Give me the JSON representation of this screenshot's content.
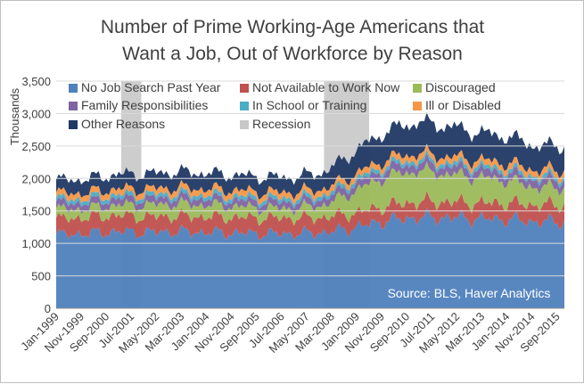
{
  "chart_data": {
    "type": "area",
    "stacked": true,
    "title_lines": [
      "Number of Prime Working-Age Americans that",
      "Want a Job, Out of Workforce by Reason"
    ],
    "ylabel": "Thousands",
    "xlabel": "",
    "ylim": [
      0,
      3500
    ],
    "yticks": [
      0,
      500,
      1000,
      1500,
      2000,
      2500,
      3000,
      3500
    ],
    "ytick_labels": [
      "0",
      "500",
      "1,000",
      "1,500",
      "2,000",
      "2,500",
      "3,000",
      "3,500"
    ],
    "xtick_labels": [
      "Jan-1999",
      "Nov-1999",
      "Sep-2000",
      "Jul-2001",
      "May-2002",
      "Mar-2003",
      "Jan-2004",
      "Nov-2004",
      "Sep-2005",
      "Jul-2006",
      "May-2007",
      "Mar-2008",
      "Jan-2009",
      "Nov-2009",
      "Sep-2010",
      "Jul-2011",
      "May-2012",
      "Mar-2013",
      "Jan-2014",
      "Nov-2014",
      "Sep-2015"
    ],
    "x_start": "Jan-1999",
    "x_end": "Dec-2015",
    "annotation": "Source: BLS, Haver Analytics",
    "recessions": [
      {
        "start": "Mar-2001",
        "end": "Nov-2001"
      },
      {
        "start": "Dec-2007",
        "end": "Jun-2009"
      }
    ],
    "series": [
      {
        "name": "No Job Search Past Year",
        "color": "#4f81bd",
        "anchor_years": [
          1999,
          2000,
          2001,
          2002,
          2003,
          2004,
          2005,
          2006,
          2007,
          2008,
          2009,
          2010,
          2011,
          2012,
          2013,
          2014,
          2015
        ],
        "values": [
          1130,
          1150,
          1180,
          1170,
          1180,
          1170,
          1160,
          1150,
          1150,
          1170,
          1250,
          1350,
          1400,
          1400,
          1380,
          1370,
          1330
        ]
      },
      {
        "name": "Not Available to Work Now",
        "color": "#c0504d",
        "anchor_years": [
          1999,
          2000,
          2001,
          2002,
          2003,
          2004,
          2005,
          2006,
          2007,
          2008,
          2009,
          2010,
          2011,
          2012,
          2013,
          2014,
          2015
        ],
        "values": [
          240,
          250,
          250,
          240,
          240,
          240,
          240,
          240,
          240,
          230,
          220,
          230,
          240,
          240,
          240,
          250,
          260
        ]
      },
      {
        "name": "Discouraged",
        "color": "#9bbb59",
        "anchor_years": [
          1999,
          2000,
          2001,
          2002,
          2003,
          2004,
          2005,
          2006,
          2007,
          2008,
          2009,
          2010,
          2011,
          2012,
          2013,
          2014,
          2015
        ],
        "values": [
          150,
          130,
          160,
          180,
          190,
          180,
          170,
          150,
          150,
          200,
          350,
          450,
          480,
          430,
          400,
          350,
          270
        ]
      },
      {
        "name": "Family Responsibilities",
        "color": "#8064a2",
        "anchor_years": [
          1999,
          2000,
          2001,
          2002,
          2003,
          2004,
          2005,
          2006,
          2007,
          2008,
          2009,
          2010,
          2011,
          2012,
          2013,
          2014,
          2015
        ],
        "values": [
          100,
          100,
          100,
          100,
          100,
          100,
          100,
          100,
          100,
          100,
          110,
          120,
          120,
          120,
          120,
          120,
          120
        ]
      },
      {
        "name": "In School or Training",
        "color": "#4bacc6",
        "anchor_years": [
          1999,
          2000,
          2001,
          2002,
          2003,
          2004,
          2005,
          2006,
          2007,
          2008,
          2009,
          2010,
          2011,
          2012,
          2013,
          2014,
          2015
        ],
        "values": [
          60,
          60,
          60,
          60,
          60,
          60,
          60,
          60,
          60,
          60,
          60,
          60,
          60,
          60,
          60,
          60,
          60
        ]
      },
      {
        "name": "Ill or Disabled",
        "color": "#f79646",
        "anchor_years": [
          1999,
          2000,
          2001,
          2002,
          2003,
          2004,
          2005,
          2006,
          2007,
          2008,
          2009,
          2010,
          2011,
          2012,
          2013,
          2014,
          2015
        ],
        "values": [
          90,
          90,
          90,
          90,
          90,
          90,
          90,
          90,
          90,
          90,
          90,
          90,
          90,
          90,
          90,
          90,
          90
        ]
      },
      {
        "name": "Other Reasons",
        "color": "#1f3864",
        "anchor_years": [
          1999,
          2000,
          2001,
          2002,
          2003,
          2004,
          2005,
          2006,
          2007,
          2008,
          2009,
          2010,
          2011,
          2012,
          2013,
          2014,
          2015
        ],
        "values": [
          200,
          210,
          220,
          230,
          240,
          240,
          230,
          230,
          230,
          260,
          360,
          430,
          480,
          470,
          420,
          410,
          370
        ]
      }
    ],
    "legend": [
      {
        "label": "No Job Search Past Year",
        "color": "#4f81bd"
      },
      {
        "label": "Not Available to Work Now",
        "color": "#c0504d"
      },
      {
        "label": "Discouraged",
        "color": "#9bbb59"
      },
      {
        "label": "Family Responsibilities",
        "color": "#8064a2"
      },
      {
        "label": "In School or Training",
        "color": "#4bacc6"
      },
      {
        "label": "Ill or Disabled",
        "color": "#f79646"
      },
      {
        "label": "Other Reasons",
        "color": "#1f3864"
      },
      {
        "label": "Recession",
        "color": "#c8c8c8"
      }
    ]
  }
}
